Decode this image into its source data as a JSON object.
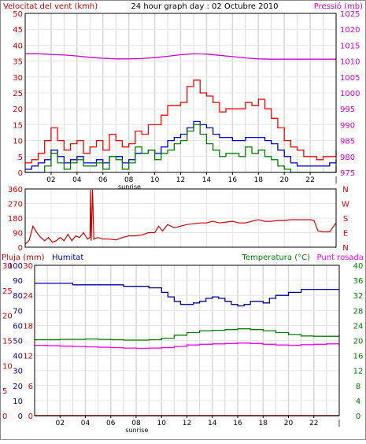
{
  "chart_data": [
    {
      "type": "line",
      "title": "24 hour graph day : 02 Octubre 2010",
      "left_axis_label": "Velocitat del vent (kmh)",
      "right_axis_label": "Pressió (mb)",
      "x_ticks": [
        "02",
        "04",
        "06",
        "08",
        "10",
        "12",
        "14",
        "16",
        "18",
        "20",
        "22"
      ],
      "x_range": [
        0,
        24
      ],
      "sunrise_label": "sunrise",
      "sunrise_hour": 8.05,
      "left_ylim": [
        0,
        50
      ],
      "left_ticks": [
        0,
        5,
        10,
        15,
        20,
        25,
        30,
        35,
        40,
        45,
        50
      ],
      "right_ylim": [
        975,
        1025
      ],
      "right_ticks": [
        975,
        980,
        985,
        990,
        995,
        1000,
        1005,
        1010,
        1015,
        1020,
        1025
      ],
      "grid": true,
      "colors": {
        "wind_gust": "#ff0000",
        "wind_avg": "#0000cc",
        "wind_speed": "#008000",
        "pressure": "#cc00cc"
      },
      "series": [
        {
          "key": "wind_gust",
          "axis": "left",
          "x": [
            0,
            0.5,
            1,
            1.5,
            2,
            2.5,
            3,
            3.5,
            4,
            4.5,
            5,
            5.5,
            6,
            6.5,
            7,
            7.5,
            8,
            8.5,
            9,
            9.5,
            10,
            10.5,
            11,
            11.5,
            12,
            12.5,
            13,
            13.5,
            14,
            14.5,
            15,
            15.5,
            16,
            16.5,
            17,
            17.5,
            18,
            18.5,
            19,
            19.5,
            20,
            20.5,
            21,
            21.5,
            22,
            22.5,
            23,
            23.5,
            24
          ],
          "values": [
            3,
            4,
            6,
            10,
            14,
            10,
            7,
            9,
            10,
            6,
            8,
            10,
            7,
            12,
            10,
            8,
            9,
            13,
            12,
            15,
            15,
            18,
            21,
            21,
            22,
            27,
            29,
            25,
            24,
            22,
            19,
            20,
            20,
            20,
            22,
            21,
            23,
            20,
            17,
            14,
            10,
            8,
            7,
            5,
            5,
            4,
            5,
            5,
            7
          ]
        },
        {
          "key": "wind_avg",
          "axis": "left",
          "x": [
            0,
            0.5,
            1,
            1.5,
            2,
            2.5,
            3,
            3.5,
            4,
            4.5,
            5,
            5.5,
            6,
            6.5,
            7,
            7.5,
            8,
            8.5,
            9,
            9.5,
            10,
            10.5,
            11,
            11.5,
            12,
            12.5,
            13,
            13.5,
            14,
            14.5,
            15,
            15.5,
            16,
            16.5,
            17,
            17.5,
            18,
            18.5,
            19,
            19.5,
            20,
            20.5,
            21,
            21.5,
            22,
            22.5,
            23,
            23.5,
            24
          ],
          "values": [
            1,
            2,
            3,
            4,
            7,
            5,
            3,
            4,
            5,
            3,
            3,
            4,
            3,
            5,
            5,
            3,
            4,
            6,
            6,
            7,
            6,
            8,
            10,
            11,
            12,
            14,
            16,
            15,
            14,
            12,
            11,
            11,
            10,
            10,
            11,
            11,
            11,
            10,
            9,
            7,
            5,
            3,
            2,
            2,
            2,
            2,
            2,
            3,
            4
          ]
        },
        {
          "key": "wind_speed",
          "axis": "left",
          "x": [
            0,
            0.5,
            1,
            1.5,
            2,
            2.5,
            3,
            3.5,
            4,
            4.5,
            5,
            5.5,
            6,
            6.5,
            7,
            7.5,
            8,
            8.5,
            9,
            9.5,
            10,
            10.5,
            11,
            11.5,
            12,
            12.5,
            13,
            13.5,
            14,
            14.5,
            15,
            15.5,
            16,
            16.5,
            17,
            17.5,
            18,
            18.5,
            19,
            19.5,
            20,
            20.5,
            21,
            21.5,
            22,
            22.5,
            23,
            23.5,
            24
          ],
          "values": [
            0,
            0,
            0,
            2,
            6,
            3,
            1,
            3,
            4,
            2,
            2,
            3,
            1,
            5,
            4,
            1,
            3,
            8,
            6,
            7,
            4,
            6,
            7,
            9,
            10,
            13,
            15,
            12,
            9,
            7,
            5,
            6,
            6,
            5,
            8,
            6,
            7,
            5,
            4,
            2,
            1,
            0,
            0,
            0,
            0,
            0,
            0,
            0,
            2
          ]
        },
        {
          "key": "pressure",
          "axis": "right",
          "x": [
            0,
            1,
            2,
            3,
            4,
            5,
            6,
            7,
            8,
            9,
            10,
            11,
            12,
            13,
            14,
            15,
            16,
            17,
            18,
            19,
            20,
            21,
            22,
            23,
            24
          ],
          "values": [
            1012.3,
            1012.3,
            1012.1,
            1011.9,
            1011.6,
            1011.2,
            1010.9,
            1010.7,
            1010.7,
            1010.8,
            1011.1,
            1011.5,
            1012.0,
            1012.3,
            1012.2,
            1011.8,
            1011.4,
            1011.0,
            1010.7,
            1010.6,
            1010.6,
            1010.6,
            1010.6,
            1010.6,
            1010.6
          ]
        }
      ]
    },
    {
      "type": "line",
      "y_ticks": [
        "360",
        "270",
        "180",
        "90",
        "0"
      ],
      "right_labels": [
        "N",
        "W",
        "S",
        "E",
        "N"
      ],
      "ylim": [
        0,
        360
      ],
      "x_range": [
        0,
        24
      ],
      "color": "#cc0000",
      "series": [
        {
          "key": "wind_direction",
          "x": [
            0,
            0.3,
            0.6,
            0.9,
            1.2,
            1.5,
            1.8,
            2.1,
            2.4,
            2.7,
            3,
            3.3,
            3.6,
            3.9,
            4.2,
            4.5,
            4.8,
            5.0,
            5.05,
            5.1,
            5.2,
            5.3,
            5.6,
            6,
            6.5,
            7,
            7.5,
            8,
            8.5,
            9,
            9.5,
            10,
            10.3,
            10.6,
            11,
            11.5,
            12,
            12.5,
            13,
            13.5,
            14,
            14.5,
            15,
            15.5,
            16,
            16.5,
            17,
            17.5,
            18,
            18.5,
            19,
            19.5,
            20,
            20.5,
            21,
            21.5,
            22,
            22.3,
            22.6,
            23,
            23.5,
            24
          ],
          "values": [
            20,
            40,
            130,
            90,
            60,
            40,
            60,
            30,
            40,
            60,
            40,
            80,
            40,
            70,
            60,
            90,
            50,
            60,
            355,
            40,
            355,
            50,
            60,
            50,
            50,
            45,
            60,
            70,
            70,
            75,
            90,
            90,
            130,
            100,
            140,
            120,
            130,
            140,
            145,
            150,
            150,
            160,
            150,
            155,
            160,
            150,
            150,
            160,
            170,
            160,
            160,
            165,
            165,
            170,
            170,
            170,
            170,
            165,
            100,
            95,
            95,
            150
          ]
        }
      ]
    },
    {
      "type": "line",
      "left_axis_label": "Pluja (mm)",
      "left_axis2_label": "Humitat",
      "right_axis_label": "Temperatura (°C)",
      "right_axis2_label": "Punt rosada",
      "x_ticks": [
        "02",
        "04",
        "06",
        "08",
        "10",
        "12",
        "14",
        "16",
        "18",
        "20",
        "22"
      ],
      "x_range": [
        0,
        24
      ],
      "sunrise_label": "sunrise",
      "sunrise_hour": 8.05,
      "rain_ticks": [
        "0",
        "5",
        "10",
        "15",
        "20",
        "25",
        "30"
      ],
      "rain_ylim": [
        0,
        30
      ],
      "humidity_ticks": [
        "0",
        "10",
        "20",
        "30",
        "40",
        "50",
        "60",
        "70",
        "80",
        "90",
        "100"
      ],
      "humidity_ylim": [
        0,
        100
      ],
      "left3_ticks": [
        "0",
        "6",
        "12",
        "18",
        "24",
        "30"
      ],
      "temp_ticks": [
        "0",
        "4",
        "8",
        "12",
        "16",
        "20",
        "24",
        "28",
        "32",
        "36",
        "40"
      ],
      "temp_ylim": [
        0,
        40
      ],
      "colors": {
        "rain": "#cc0000",
        "humidity": "#000099",
        "temperature": "#008000",
        "dew_point": "#ff00ff"
      },
      "series": [
        {
          "key": "humidity",
          "axis": "humidity",
          "x": [
            0,
            1,
            2,
            3,
            4,
            5,
            6,
            7,
            8,
            9,
            10,
            10.5,
            11,
            11.5,
            12,
            12.5,
            13,
            13.5,
            14,
            14.5,
            15,
            15.5,
            16,
            16.5,
            17,
            17.5,
            18,
            18.5,
            19,
            20,
            21,
            22,
            23,
            24
          ],
          "values": [
            88,
            88,
            88,
            87,
            87,
            87,
            87,
            86,
            86,
            85,
            82,
            79,
            76,
            74,
            74,
            75,
            76,
            78,
            79,
            78,
            76,
            74,
            73,
            74,
            76,
            76,
            75,
            78,
            80,
            82,
            84,
            84,
            84,
            84
          ]
        },
        {
          "key": "temperature",
          "axis": "temp",
          "x": [
            0,
            1,
            2,
            3,
            4,
            5,
            6,
            7,
            8,
            9,
            10,
            11,
            12,
            13,
            14,
            15,
            16,
            17,
            18,
            19,
            20,
            21,
            22,
            23,
            24
          ],
          "values": [
            20.2,
            20.2,
            20.3,
            20.3,
            20.4,
            20.3,
            20.2,
            20.1,
            20.1,
            20.2,
            20.6,
            21.4,
            22.1,
            22.6,
            22.7,
            22.9,
            23.1,
            22.9,
            22.6,
            22.1,
            21.6,
            21.2,
            21.1,
            21.1,
            21.3
          ]
        },
        {
          "key": "dew_point",
          "axis": "temp",
          "x": [
            0,
            1,
            2,
            3,
            4,
            5,
            6,
            7,
            8,
            9,
            10,
            11,
            12,
            13,
            14,
            15,
            16,
            17,
            18,
            19,
            20,
            21,
            22,
            23,
            24
          ],
          "values": [
            18.7,
            18.6,
            18.5,
            18.4,
            18.3,
            18.2,
            18.1,
            18.0,
            17.9,
            18.0,
            18.1,
            18.4,
            18.8,
            19.0,
            19.1,
            19.2,
            19.3,
            19.2,
            19.0,
            18.8,
            18.7,
            18.9,
            19.0,
            19.1,
            19.2
          ]
        },
        {
          "key": "rain",
          "axis": "rain",
          "x": [
            0,
            24
          ],
          "values": [
            0,
            0
          ]
        }
      ]
    }
  ]
}
